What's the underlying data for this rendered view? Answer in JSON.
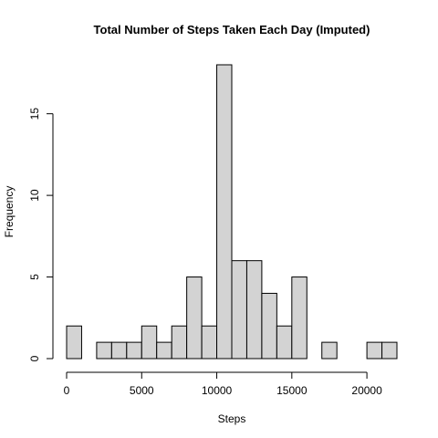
{
  "chart_data": {
    "type": "bar",
    "title": "Total Number of Steps Taken Each Day (Imputed)",
    "xlabel": "Steps",
    "ylabel": "Frequency",
    "bin_width": 1000,
    "bin_starts": [
      0,
      1000,
      2000,
      3000,
      4000,
      5000,
      6000,
      7000,
      8000,
      9000,
      10000,
      11000,
      12000,
      13000,
      14000,
      15000,
      16000,
      17000,
      18000,
      19000,
      20000,
      21000
    ],
    "values": [
      2,
      0,
      1,
      1,
      1,
      2,
      1,
      2,
      5,
      2,
      18,
      6,
      6,
      4,
      2,
      5,
      0,
      1,
      0,
      0,
      1,
      1
    ],
    "xlim": [
      0,
      22000
    ],
    "ylim": [
      0,
      18
    ],
    "x_ticks": [
      0,
      5000,
      10000,
      15000,
      20000
    ],
    "y_ticks": [
      0,
      5,
      10,
      15
    ],
    "x_tick_labels": [
      "0",
      "5000",
      "10000",
      "15000",
      "20000"
    ],
    "y_tick_labels": [
      "0",
      "5",
      "10",
      "15"
    ],
    "grid": false,
    "bar_color": "#d3d3d3"
  }
}
